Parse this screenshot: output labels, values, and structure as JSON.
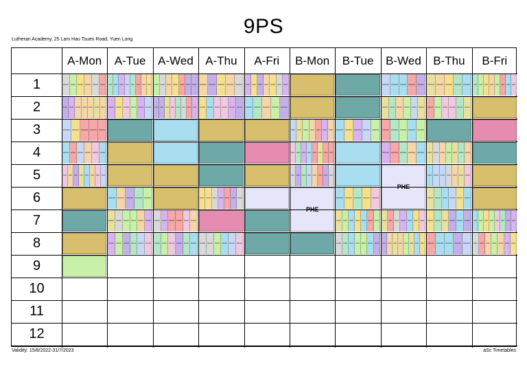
{
  "timetable": {
    "title": "9PS",
    "school": "Lutheran Academy, 25 Lam Hau Tsuen Road, Yuen Long",
    "validity": "Validity: 15/8/2022-31/7/2023",
    "brand": "aSc Timetables",
    "days": [
      "A-Mon",
      "A-Tue",
      "A-Wed",
      "A-Thu",
      "A-Fri",
      "B-Mon",
      "B-Tue",
      "B-Wed",
      "B-Thu",
      "B-Fri"
    ],
    "periods": [
      "1",
      "2",
      "3",
      "4",
      "5",
      "6",
      "7",
      "8",
      "9",
      "10",
      "11",
      "12"
    ],
    "phe_label": "PHE"
  },
  "colors": {
    "teal": "#6fa9a7",
    "tan": "#d8bf6e",
    "sky": "#a9ddf0",
    "mint": "#c8f0a8",
    "lavender": "#e6e6fa",
    "pink": "#e58cb0",
    "grid": "#000000"
  }
}
